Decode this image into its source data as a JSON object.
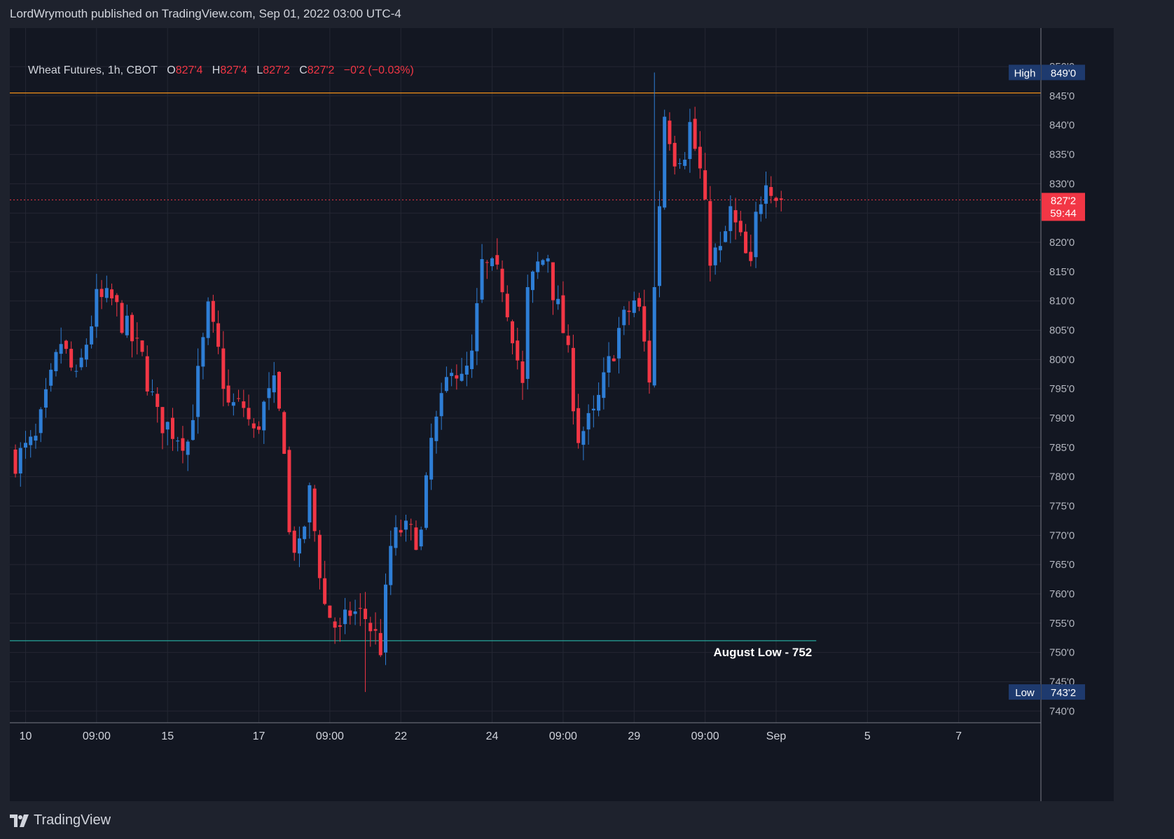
{
  "header": {
    "publisher_line": "LordWrymouth published on TradingView.com, Sep 01, 2022 03:00 UTC-4"
  },
  "legend": {
    "symbol": "Wheat Futures, 1h, CBOT",
    "open_label": "O",
    "open": "827'4",
    "high_label": "H",
    "high": "827'4",
    "low_label": "L",
    "low": "827'2",
    "close_label": "C",
    "close": "827'2",
    "change": "−0'2 (−0.03%)"
  },
  "footer": {
    "brand": "TradingView"
  },
  "colors": {
    "up": "#2e7ed6",
    "down": "#f23645",
    "resistance": "#f7931a",
    "support": "#26a69a"
  },
  "chart_data": {
    "type": "candlestick",
    "symbol": "Wheat Futures, 1h, CBOT",
    "y_range": [
      738,
      853
    ],
    "y_ticks": [
      "850'0",
      "845'0",
      "840'0",
      "835'0",
      "830'0",
      "825'0",
      "820'0",
      "815'0",
      "810'0",
      "805'0",
      "800'0",
      "795'0",
      "790'0",
      "785'0",
      "780'0",
      "775'0",
      "770'0",
      "765'0",
      "760'0",
      "755'0",
      "750'0",
      "745'0",
      "740'0"
    ],
    "x_ticks": [
      {
        "label": "10",
        "i": 2
      },
      {
        "label": "09:00",
        "i": 16
      },
      {
        "label": "15",
        "i": 30
      },
      {
        "label": "17",
        "i": 48
      },
      {
        "label": "09:00",
        "i": 62
      },
      {
        "label": "22",
        "i": 76
      },
      {
        "label": "24",
        "i": 94
      },
      {
        "label": "09:00",
        "i": 108
      },
      {
        "label": "29",
        "i": 122
      },
      {
        "label": "09:00",
        "i": 136
      },
      {
        "label": "Sep",
        "i": 150
      },
      {
        "label": "5",
        "i": 168
      },
      {
        "label": "7",
        "i": 186
      }
    ],
    "path_anchors": [
      [
        0,
        783
      ],
      [
        4,
        786
      ],
      [
        9,
        803
      ],
      [
        12,
        796
      ],
      [
        16,
        810
      ],
      [
        19,
        810
      ],
      [
        22,
        805
      ],
      [
        25,
        800
      ],
      [
        28,
        790
      ],
      [
        31,
        788
      ],
      [
        34,
        786
      ],
      [
        38,
        808
      ],
      [
        40,
        801
      ],
      [
        42,
        792
      ],
      [
        45,
        792
      ],
      [
        47,
        787
      ],
      [
        49,
        792
      ],
      [
        51,
        795
      ],
      [
        53,
        786
      ],
      [
        54,
        770
      ],
      [
        56,
        767
      ],
      [
        58,
        777
      ],
      [
        61,
        758
      ],
      [
        64,
        753
      ],
      [
        66,
        757
      ],
      [
        69,
        756
      ],
      [
        72,
        751
      ],
      [
        74,
        768
      ],
      [
        76,
        771
      ],
      [
        78,
        770
      ],
      [
        80,
        770
      ],
      [
        82,
        786
      ],
      [
        84,
        792
      ],
      [
        86,
        800
      ],
      [
        88,
        796
      ],
      [
        90,
        800
      ],
      [
        92,
        816
      ],
      [
        94,
        815
      ],
      [
        96,
        813
      ],
      [
        98,
        805
      ],
      [
        100,
        795
      ],
      [
        101,
        811
      ],
      [
        103,
        816
      ],
      [
        105,
        818
      ],
      [
        106,
        812
      ],
      [
        108,
        805
      ],
      [
        109,
        800
      ],
      [
        111,
        787
      ],
      [
        114,
        790
      ],
      [
        117,
        799
      ],
      [
        119,
        805
      ],
      [
        122,
        810
      ],
      [
        123,
        808
      ],
      [
        125,
        797
      ],
      [
        126,
        812
      ],
      [
        128,
        842
      ],
      [
        130,
        835
      ],
      [
        132,
        836
      ],
      [
        133,
        840
      ],
      [
        135,
        832
      ],
      [
        137,
        818
      ],
      [
        139,
        818
      ],
      [
        141,
        825
      ],
      [
        143,
        820
      ],
      [
        145,
        815
      ],
      [
        146,
        824
      ],
      [
        148,
        832
      ],
      [
        150,
        828
      ],
      [
        151,
        827.25
      ]
    ],
    "last_price": "827'2",
    "countdown": "59:44",
    "high_label": "High",
    "high_value": "849'0",
    "high_price": 849,
    "low_label": "Low",
    "low_value": "743'2",
    "low_price": 743.25,
    "resistance_price": 845.5,
    "support_price": 752,
    "support_label": "August Low - 752"
  }
}
